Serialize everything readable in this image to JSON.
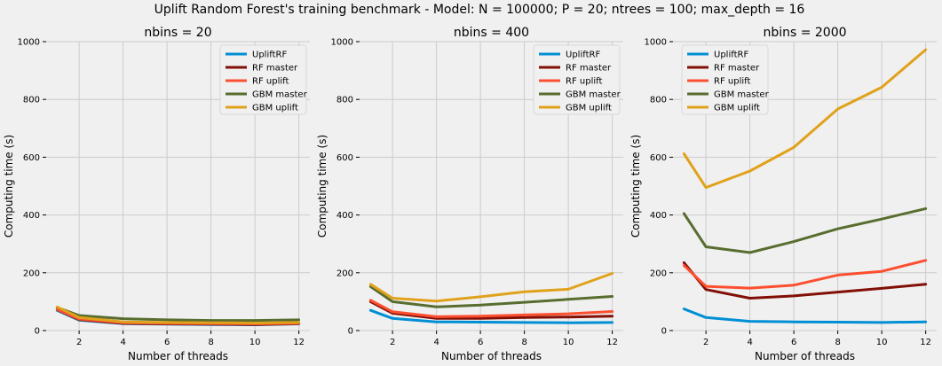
{
  "figure": {
    "suptitle": "Uplift Random Forest's training benchmark - Model: N = 100000; P = 20; ntrees = 100; max_depth = 16"
  },
  "colors": {
    "UpliftRF": "#008fd5",
    "RF master": "#810f05",
    "RF uplift": "#fc4f30",
    "GBM master": "#586d2f",
    "GBM uplift": "#e0a21b"
  },
  "chart_data": [
    {
      "type": "line",
      "title": "nbins = 20",
      "xlabel": "Number of threads",
      "ylabel": "Computing time (s)",
      "xlim": [
        0.5,
        12.5
      ],
      "ylim": [
        0,
        1000
      ],
      "xticks": [
        2,
        4,
        6,
        8,
        10,
        12
      ],
      "yticks": [
        0,
        200,
        400,
        600,
        800,
        1000
      ],
      "grid": true,
      "legend": "top-right",
      "x": [
        1,
        2,
        4,
        6,
        8,
        10,
        12
      ],
      "series": [
        {
          "name": "UpliftRF",
          "values": [
            70,
            36,
            24,
            22,
            21,
            20,
            23
          ]
        },
        {
          "name": "RF master",
          "values": [
            72,
            38,
            25,
            23,
            22,
            21,
            24
          ]
        },
        {
          "name": "RF uplift",
          "values": [
            73,
            40,
            27,
            25,
            24,
            23,
            25
          ]
        },
        {
          "name": "GBM master",
          "values": [
            80,
            52,
            41,
            37,
            35,
            35,
            37
          ]
        },
        {
          "name": "GBM uplift",
          "values": [
            82,
            45,
            30,
            28,
            27,
            26,
            28
          ]
        }
      ]
    },
    {
      "type": "line",
      "title": "nbins = 400",
      "xlabel": "Number of threads",
      "ylabel": "Computing time (s)",
      "xlim": [
        0.5,
        12.5
      ],
      "ylim": [
        0,
        1000
      ],
      "xticks": [
        2,
        4,
        6,
        8,
        10,
        12
      ],
      "yticks": [
        0,
        200,
        400,
        600,
        800,
        1000
      ],
      "grid": true,
      "legend": "top-right",
      "x": [
        1,
        2,
        4,
        6,
        8,
        10,
        12
      ],
      "series": [
        {
          "name": "UpliftRF",
          "values": [
            70,
            42,
            30,
            29,
            28,
            27,
            28
          ]
        },
        {
          "name": "RF master",
          "values": [
            100,
            60,
            42,
            42,
            45,
            47,
            50
          ]
        },
        {
          "name": "RF uplift",
          "values": [
            105,
            65,
            48,
            50,
            54,
            58,
            66
          ]
        },
        {
          "name": "GBM master",
          "values": [
            152,
            100,
            82,
            88,
            98,
            108,
            118
          ]
        },
        {
          "name": "GBM uplift",
          "values": [
            160,
            112,
            102,
            117,
            134,
            143,
            198
          ]
        }
      ]
    },
    {
      "type": "line",
      "title": "nbins = 2000",
      "xlabel": "Number of threads",
      "ylabel": "Computing time (s)",
      "xlim": [
        0.5,
        12.5
      ],
      "ylim": [
        0,
        1000
      ],
      "xticks": [
        2,
        4,
        6,
        8,
        10,
        12
      ],
      "yticks": [
        0,
        200,
        400,
        600,
        800,
        1000
      ],
      "grid": true,
      "legend": "top-left",
      "x": [
        1,
        2,
        4,
        6,
        8,
        10,
        12
      ],
      "series": [
        {
          "name": "UpliftRF",
          "values": [
            75,
            45,
            32,
            30,
            29,
            28,
            30
          ]
        },
        {
          "name": "RF master",
          "values": [
            235,
            142,
            112,
            120,
            133,
            146,
            160
          ]
        },
        {
          "name": "RF uplift",
          "values": [
            225,
            153,
            147,
            157,
            192,
            205,
            243
          ]
        },
        {
          "name": "GBM master",
          "values": [
            405,
            290,
            270,
            308,
            352,
            386,
            422
          ]
        },
        {
          "name": "GBM uplift",
          "values": [
            612,
            495,
            552,
            634,
            767,
            842,
            972
          ]
        }
      ]
    }
  ]
}
